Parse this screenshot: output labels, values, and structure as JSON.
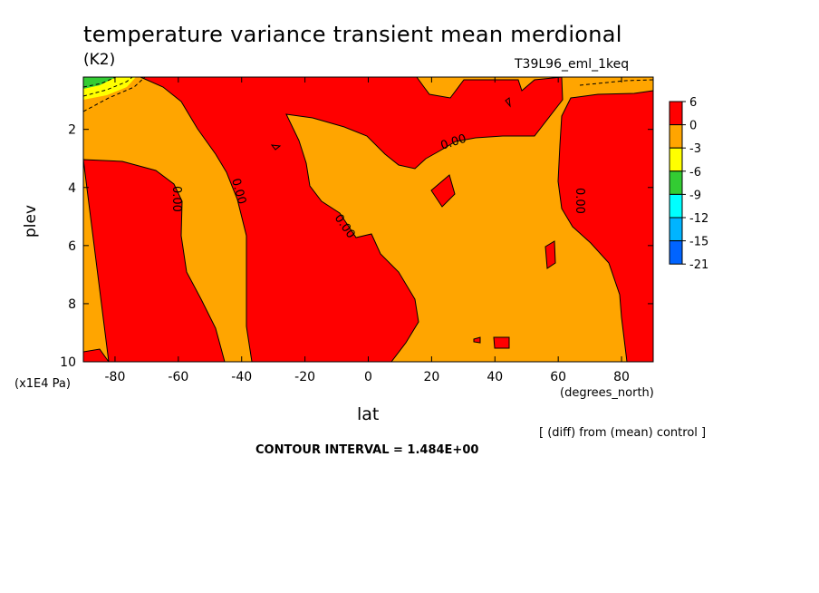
{
  "chart_data": {
    "type": "contour",
    "title": "temperature variance transient mean merdional",
    "units": "(K2)",
    "run_label": "T39L96_eml_1keq",
    "xlabel": "lat",
    "x_units": "(degrees_north)",
    "ylabel": "plev",
    "y_units": "(x1E4 Pa)",
    "x_ticks": [
      -80,
      -60,
      -40,
      -20,
      0,
      20,
      40,
      60,
      80
    ],
    "x_tick_labels": [
      "-80",
      "-60",
      "-40",
      "-20",
      "0",
      "20",
      "40",
      "60",
      "80"
    ],
    "y_ticks": [
      2,
      4,
      6,
      8,
      10
    ],
    "y_tick_labels": [
      "2",
      "4",
      "6",
      "8",
      "10"
    ],
    "xlim": [
      -90,
      90
    ],
    "ylim": [
      0.2,
      10
    ],
    "y_inverted": true,
    "colorbar": {
      "levels": [
        "6",
        "0",
        "-3",
        "-6",
        "-9",
        "-12",
        "-15",
        "-21"
      ],
      "colors": [
        "#ff0000",
        "#ffa500",
        "#ffff00",
        "#33cc33",
        "#00ffff",
        "#00b4ff",
        "#0064ff"
      ]
    },
    "contour_labels": [
      "0.00",
      "0.00",
      "0.00",
      "0.00",
      "0.00"
    ],
    "footnote": "[ (diff) from (mean) control ]",
    "contour_interval": "CONTOUR INTERVAL = 1.484E+00"
  }
}
